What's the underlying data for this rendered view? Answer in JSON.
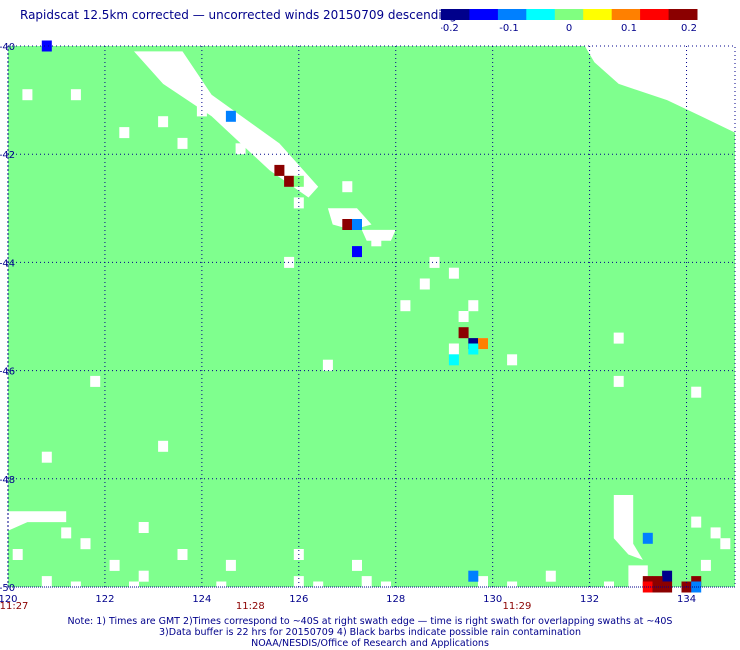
{
  "title": "Rapidscat 12.5km corrected — uncorrected winds 20150709 descending",
  "colorbar": {
    "colors": [
      "#00008b",
      "#0000ff",
      "#0080ff",
      "#00ffff",
      "#80ff80",
      "#ffff00",
      "#ff8000",
      "#ff0000",
      "#8b0000"
    ],
    "tick_labels": [
      "-0.2",
      "-0.1",
      "0",
      "0.1",
      "0.2"
    ]
  },
  "map": {
    "lon_range": [
      120,
      135
    ],
    "lat_range": [
      -50,
      -40
    ],
    "ocean_color": "#7fff8e",
    "grid_color": "#00008b",
    "lon_ticks": [
      "120",
      "122",
      "124",
      "126",
      "128",
      "130",
      "132",
      "134"
    ],
    "lat_ticks": [
      "-40",
      "-42",
      "-44",
      "-46",
      "-48",
      "-50"
    ],
    "time_labels": [
      {
        "text": "11:27",
        "lon": 120
      },
      {
        "text": "11:28",
        "lon": 125
      },
      {
        "text": "11:29",
        "lon": 130.5
      }
    ],
    "nodata_regions": [
      [
        [
          122.6,
          -40.1
        ],
        [
          123.6,
          -40.1
        ],
        [
          124.2,
          -40.9
        ],
        [
          125.6,
          -41.8
        ],
        [
          126.4,
          -42.6
        ],
        [
          126.2,
          -42.8
        ],
        [
          125.4,
          -42.3
        ],
        [
          124.2,
          -41.3
        ],
        [
          123.2,
          -40.7
        ]
      ],
      [
        [
          126.6,
          -43.0
        ],
        [
          127.2,
          -43.0
        ],
        [
          127.5,
          -43.3
        ],
        [
          127.1,
          -43.4
        ],
        [
          126.7,
          -43.3
        ]
      ],
      [
        [
          127.3,
          -43.4
        ],
        [
          128.0,
          -43.4
        ],
        [
          127.9,
          -43.6
        ],
        [
          127.4,
          -43.6
        ]
      ],
      [
        [
          131.9,
          -40.0
        ],
        [
          135.0,
          -40.0
        ],
        [
          135.0,
          -41.6
        ],
        [
          134.3,
          -41.3
        ],
        [
          133.6,
          -41.0
        ],
        [
          132.6,
          -40.7
        ],
        [
          132.1,
          -40.3
        ]
      ],
      [
        [
          132.5,
          -48.3
        ],
        [
          132.9,
          -48.3
        ],
        [
          132.9,
          -49.2
        ],
        [
          133.1,
          -49.5
        ],
        [
          132.8,
          -49.4
        ],
        [
          132.5,
          -49.1
        ]
      ],
      [
        [
          132.8,
          -49.6
        ],
        [
          133.2,
          -49.6
        ],
        [
          133.2,
          -50.0
        ],
        [
          132.8,
          -50.0
        ]
      ],
      [
        [
          119.9,
          -48.6
        ],
        [
          121.2,
          -48.6
        ],
        [
          121.2,
          -48.8
        ],
        [
          120.4,
          -48.8
        ],
        [
          119.9,
          -49.0
        ]
      ]
    ],
    "nodata_cells": [
      [
        120.4,
        -40.9
      ],
      [
        121.4,
        -40.9
      ],
      [
        124.0,
        -41.2
      ],
      [
        123.2,
        -41.4
      ],
      [
        122.4,
        -41.6
      ],
      [
        123.6,
        -41.8
      ],
      [
        124.8,
        -41.9
      ],
      [
        127.6,
        -43.6
      ],
      [
        128.6,
        -44.4
      ],
      [
        128.2,
        -44.8
      ],
      [
        127.0,
        -42.6
      ],
      [
        126.0,
        -42.9
      ],
      [
        125.8,
        -44.0
      ],
      [
        128.8,
        -44.0
      ],
      [
        129.2,
        -44.2
      ],
      [
        129.6,
        -44.8
      ],
      [
        129.4,
        -45.0
      ],
      [
        132.6,
        -45.4
      ],
      [
        129.8,
        -45.5
      ],
      [
        130.4,
        -45.8
      ],
      [
        126.6,
        -45.9
      ],
      [
        129.2,
        -45.6
      ],
      [
        132.6,
        -46.2
      ],
      [
        134.2,
        -46.4
      ],
      [
        123.2,
        -47.4
      ],
      [
        120.8,
        -47.6
      ],
      [
        121.8,
        -46.2
      ],
      [
        121.2,
        -49.0
      ],
      [
        122.8,
        -48.9
      ],
      [
        121.6,
        -49.2
      ],
      [
        123.6,
        -49.4
      ],
      [
        122.2,
        -49.6
      ],
      [
        122.8,
        -49.8
      ],
      [
        120.2,
        -49.4
      ],
      [
        120.8,
        -49.9
      ],
      [
        124.6,
        -49.6
      ],
      [
        124.4,
        -50.0
      ],
      [
        126.0,
        -49.9
      ],
      [
        127.4,
        -49.9
      ],
      [
        127.8,
        -50.0
      ],
      [
        129.8,
        -49.9
      ],
      [
        130.4,
        -50.0
      ],
      [
        131.2,
        -49.8
      ],
      [
        134.2,
        -48.8
      ],
      [
        134.6,
        -49.0
      ],
      [
        134.8,
        -49.2
      ],
      [
        134.4,
        -49.6
      ],
      [
        126.0,
        -49.4
      ],
      [
        127.2,
        -49.6
      ],
      [
        132.4,
        -50.0
      ],
      [
        121.4,
        -50.0
      ],
      [
        122.6,
        -50.0
      ],
      [
        126.4,
        -50.0
      ]
    ],
    "data_cells": [
      {
        "lon": 124.6,
        "lat": -41.3,
        "value": -0.12
      },
      {
        "lon": 125.6,
        "lat": -42.3,
        "value": 0.2
      },
      {
        "lon": 125.8,
        "lat": -42.5,
        "value": 0.2
      },
      {
        "lon": 126.0,
        "lat": -42.5,
        "value": 0.0
      },
      {
        "lon": 127.0,
        "lat": -43.3,
        "value": 0.2
      },
      {
        "lon": 127.2,
        "lat": -43.3,
        "value": -0.12
      },
      {
        "lon": 127.2,
        "lat": -43.8,
        "value": -0.15
      },
      {
        "lon": 129.4,
        "lat": -45.3,
        "value": 0.2
      },
      {
        "lon": 129.6,
        "lat": -45.5,
        "value": -0.2
      },
      {
        "lon": 129.8,
        "lat": -45.5,
        "value": 0.12
      },
      {
        "lon": 129.6,
        "lat": -45.6,
        "value": -0.03
      },
      {
        "lon": 129.2,
        "lat": -45.8,
        "value": -0.05
      },
      {
        "lon": 133.2,
        "lat": -49.1,
        "value": -0.12
      },
      {
        "lon": 133.6,
        "lat": -49.8,
        "value": -0.2
      },
      {
        "lon": 129.6,
        "lat": -49.8,
        "value": -0.08
      },
      {
        "lon": 133.2,
        "lat": -49.9,
        "value": 0.2
      },
      {
        "lon": 133.4,
        "lat": -49.9,
        "value": 0.2
      },
      {
        "lon": 134.2,
        "lat": -49.9,
        "value": 0.2
      },
      {
        "lon": 133.2,
        "lat": -50.0,
        "value": 0.15
      },
      {
        "lon": 133.4,
        "lat": -50.0,
        "value": 0.2
      },
      {
        "lon": 133.6,
        "lat": -50.0,
        "value": 0.2
      },
      {
        "lon": 134.0,
        "lat": -50.0,
        "value": 0.2
      },
      {
        "lon": 134.2,
        "lat": -50.0,
        "value": -0.12
      },
      {
        "lon": 120.8,
        "lat": -40.0,
        "value": -0.15
      }
    ]
  },
  "notes": [
    "Note: 1) Times are GMT 2)Times correspond to ~40S at right swath edge — time is right swath for overlapping swaths at ~40S",
    "3)Data buffer is 22 hrs for 20150709 4) Black barbs indicate possible rain contamination",
    "NOAA/NESDIS/Office of Research and Applications"
  ]
}
